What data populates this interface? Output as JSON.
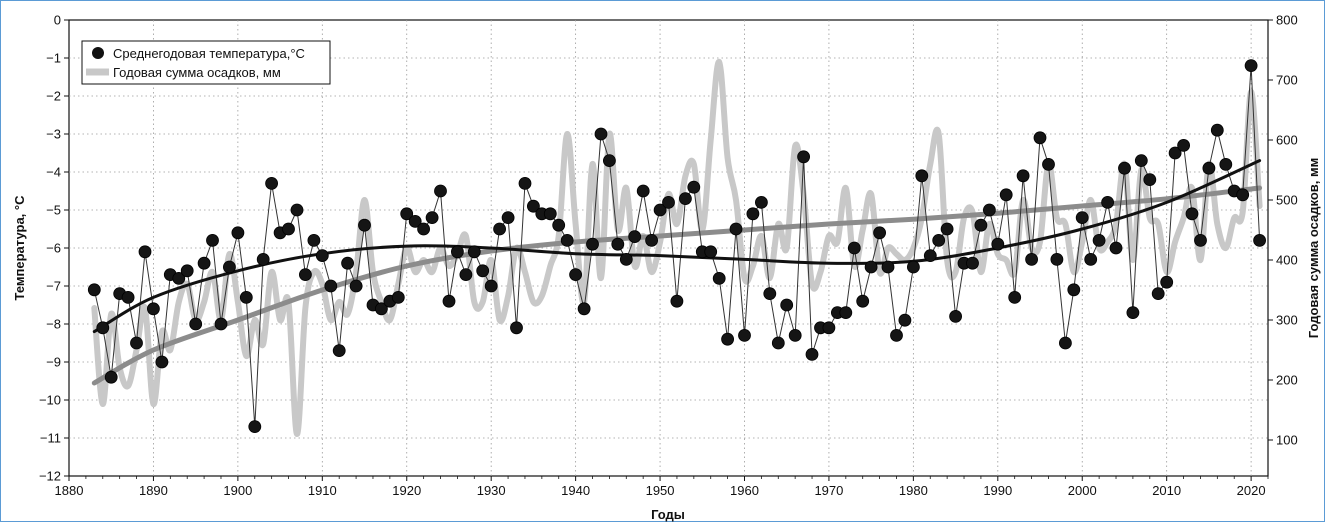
{
  "chart_data": {
    "type": "line",
    "xlabel": "Годы",
    "ylabel_left": "Температура, °С",
    "ylabel_right": "Годовая сумма осадков, мм",
    "xlim": [
      1880,
      2022
    ],
    "ylim_left": [
      -12,
      0
    ],
    "ylim_right": [
      40,
      800
    ],
    "x_ticks": [
      1880,
      1890,
      1900,
      1910,
      1920,
      1930,
      1940,
      1950,
      1960,
      1970,
      1980,
      1990,
      2000,
      2010,
      2020
    ],
    "y_ticks_left": [
      0,
      -1,
      -2,
      -3,
      -4,
      -5,
      -6,
      -7,
      -8,
      -9,
      -10,
      -11,
      -12
    ],
    "y_ticks_right": [
      100,
      200,
      300,
      400,
      500,
      600,
      700,
      800
    ],
    "grid": true,
    "legend_position": "top-left",
    "series": [
      {
        "name": "Среднегодовая температура,°С",
        "axis": "left",
        "style": "markers",
        "x": [
          1883,
          1884,
          1885,
          1886,
          1887,
          1888,
          1889,
          1890,
          1891,
          1892,
          1893,
          1894,
          1895,
          1896,
          1897,
          1898,
          1899,
          1900,
          1901,
          1902,
          1903,
          1904,
          1905,
          1906,
          1907,
          1908,
          1909,
          1910,
          1911,
          1912,
          1913,
          1914,
          1915,
          1916,
          1917,
          1918,
          1919,
          1920,
          1921,
          1922,
          1923,
          1924,
          1925,
          1926,
          1927,
          1928,
          1929,
          1930,
          1931,
          1932,
          1933,
          1934,
          1935,
          1936,
          1937,
          1938,
          1939,
          1940,
          1941,
          1942,
          1943,
          1944,
          1945,
          1946,
          1947,
          1948,
          1949,
          1950,
          1951,
          1952,
          1953,
          1954,
          1955,
          1956,
          1957,
          1958,
          1959,
          1960,
          1961,
          1962,
          1963,
          1964,
          1965,
          1966,
          1967,
          1968,
          1969,
          1970,
          1971,
          1972,
          1973,
          1974,
          1975,
          1976,
          1977,
          1978,
          1979,
          1980,
          1981,
          1982,
          1983,
          1984,
          1985,
          1986,
          1987,
          1988,
          1989,
          1990,
          1991,
          1992,
          1993,
          1994,
          1995,
          1996,
          1997,
          1998,
          1999,
          2000,
          2001,
          2002,
          2003,
          2004,
          2005,
          2006,
          2007,
          2008,
          2009,
          2010,
          2011,
          2012,
          2013,
          2014,
          2015,
          2016,
          2017,
          2018,
          2019,
          2020,
          2021
        ],
        "values": [
          -7.1,
          -8.1,
          -9.4,
          -7.2,
          -7.3,
          -8.5,
          -6.1,
          -7.6,
          -9.0,
          -6.7,
          -6.8,
          -6.6,
          -8.0,
          -6.4,
          -5.8,
          -8.0,
          -6.5,
          -5.6,
          -7.3,
          -10.7,
          -6.3,
          -4.3,
          -5.6,
          -5.5,
          -5.0,
          -6.7,
          -5.8,
          -6.2,
          -7.0,
          -8.7,
          -6.4,
          -7.0,
          -5.4,
          -7.5,
          -7.6,
          -7.4,
          -7.3,
          -5.1,
          -5.3,
          -5.5,
          -5.2,
          -4.5,
          -7.4,
          -6.1,
          -6.7,
          -6.1,
          -6.6,
          -7.0,
          -5.5,
          -5.2,
          -8.1,
          -4.3,
          -4.9,
          -5.1,
          -5.1,
          -5.4,
          -5.8,
          -6.7,
          -7.6,
          -5.9,
          -3.0,
          -3.7,
          -5.9,
          -6.3,
          -5.7,
          -4.5,
          -5.8,
          -5.0,
          -4.8,
          -7.4,
          -4.7,
          -4.4,
          -6.1,
          -6.1,
          -6.8,
          -8.4,
          -5.5,
          -8.3,
          -5.1,
          -4.8,
          -7.2,
          -8.5,
          -7.5,
          -8.3,
          -3.6,
          -8.8,
          -8.1,
          -8.1,
          -7.7,
          -7.7,
          -6.0,
          -7.4,
          -6.5,
          -5.6,
          -6.5,
          -8.3,
          -7.9,
          -6.5,
          -4.1,
          -6.2,
          -5.8,
          -5.5,
          -7.8,
          -6.4,
          -6.4,
          -5.4,
          -5.0,
          -5.9,
          -4.6,
          -7.3,
          -4.1,
          -6.3,
          -3.1,
          -3.8,
          -6.3,
          -8.5,
          -7.1,
          -5.2,
          -6.3,
          -5.8,
          -4.8,
          -6.0,
          -3.9,
          -7.7,
          -3.7,
          -4.2,
          -7.2,
          -6.9,
          -3.5,
          -3.3,
          -5.1,
          -5.8,
          -3.9,
          -2.9,
          -3.8,
          -4.5,
          -4.6,
          -1.2,
          -5.8
        ]
      },
      {
        "name": "Годовая сумма осадков, мм",
        "axis": "right",
        "style": "thick-line",
        "color": "#c8c8c8",
        "x": [
          1883,
          1884,
          1885,
          1886,
          1887,
          1888,
          1889,
          1890,
          1891,
          1892,
          1893,
          1894,
          1895,
          1896,
          1897,
          1898,
          1899,
          1900,
          1901,
          1902,
          1903,
          1904,
          1905,
          1906,
          1907,
          1908,
          1909,
          1910,
          1911,
          1912,
          1913,
          1914,
          1915,
          1916,
          1917,
          1918,
          1919,
          1920,
          1921,
          1922,
          1923,
          1924,
          1925,
          1926,
          1927,
          1928,
          1929,
          1930,
          1931,
          1932,
          1933,
          1934,
          1935,
          1936,
          1937,
          1938,
          1939,
          1940,
          1941,
          1942,
          1943,
          1944,
          1945,
          1946,
          1947,
          1948,
          1949,
          1950,
          1951,
          1952,
          1953,
          1954,
          1955,
          1956,
          1957,
          1958,
          1959,
          1960,
          1961,
          1962,
          1963,
          1964,
          1965,
          1966,
          1967,
          1968,
          1969,
          1970,
          1971,
          1972,
          1973,
          1974,
          1975,
          1976,
          1977,
          1978,
          1979,
          1980,
          1981,
          1982,
          1983,
          1984,
          1985,
          1986,
          1987,
          1988,
          1989,
          1990,
          1991,
          1992,
          1993,
          1994,
          1995,
          1996,
          1997,
          1998,
          1999,
          2000,
          2001,
          2002,
          2003,
          2004,
          2005,
          2006,
          2007,
          2008,
          2009,
          2010,
          2011,
          2012,
          2013,
          2014,
          2015,
          2016,
          2017,
          2018,
          2019,
          2020,
          2021
        ],
        "values": [
          320,
          160,
          310,
          220,
          190,
          250,
          320,
          160,
          280,
          250,
          330,
          360,
          300,
          330,
          380,
          300,
          410,
          330,
          240,
          300,
          260,
          380,
          300,
          330,
          110,
          320,
          380,
          360,
          300,
          330,
          310,
          380,
          500,
          380,
          330,
          300,
          360,
          420,
          380,
          400,
          380,
          420,
          390,
          410,
          440,
          330,
          330,
          400,
          300,
          340,
          420,
          380,
          330,
          340,
          390,
          440,
          610,
          460,
          330,
          560,
          370,
          610,
          450,
          520,
          390,
          440,
          380,
          430,
          510,
          460,
          540,
          560,
          450,
          600,
          730,
          570,
          500,
          370,
          390,
          440,
          370,
          460,
          420,
          590,
          510,
          360,
          380,
          440,
          430,
          520,
          390,
          450,
          510,
          380,
          420,
          410,
          400,
          420,
          470,
          560,
          610,
          400,
          380,
          470,
          480,
          380,
          460,
          410,
          400,
          380,
          500,
          420,
          430,
          560,
          470,
          460,
          380,
          430,
          500,
          420,
          430,
          460,
          560,
          400,
          550,
          470,
          460,
          380,
          430,
          470,
          520,
          400,
          560,
          460,
          420,
          470,
          480,
          680,
          490
        ]
      },
      {
        "name": "",
        "axis": "left",
        "style": "trend-black",
        "x": [
          1883,
          1890,
          1900,
          1910,
          1920,
          1930,
          1940,
          1950,
          1960,
          1970,
          1980,
          1990,
          2000,
          2010,
          2021
        ],
        "values": [
          -8.2,
          -7.3,
          -6.6,
          -6.15,
          -5.95,
          -6.0,
          -6.15,
          -6.2,
          -6.3,
          -6.4,
          -6.35,
          -6.0,
          -5.5,
          -4.8,
          -3.7
        ]
      },
      {
        "name": "",
        "axis": "right",
        "style": "trend-gray",
        "x": [
          1883,
          1890,
          1900,
          1910,
          1920,
          1930,
          1940,
          1950,
          1960,
          1970,
          1980,
          1990,
          2000,
          2010,
          2021
        ],
        "values": [
          195,
          250,
          300,
          350,
          390,
          415,
          430,
          440,
          450,
          460,
          468,
          478,
          490,
          502,
          520
        ]
      }
    ]
  }
}
